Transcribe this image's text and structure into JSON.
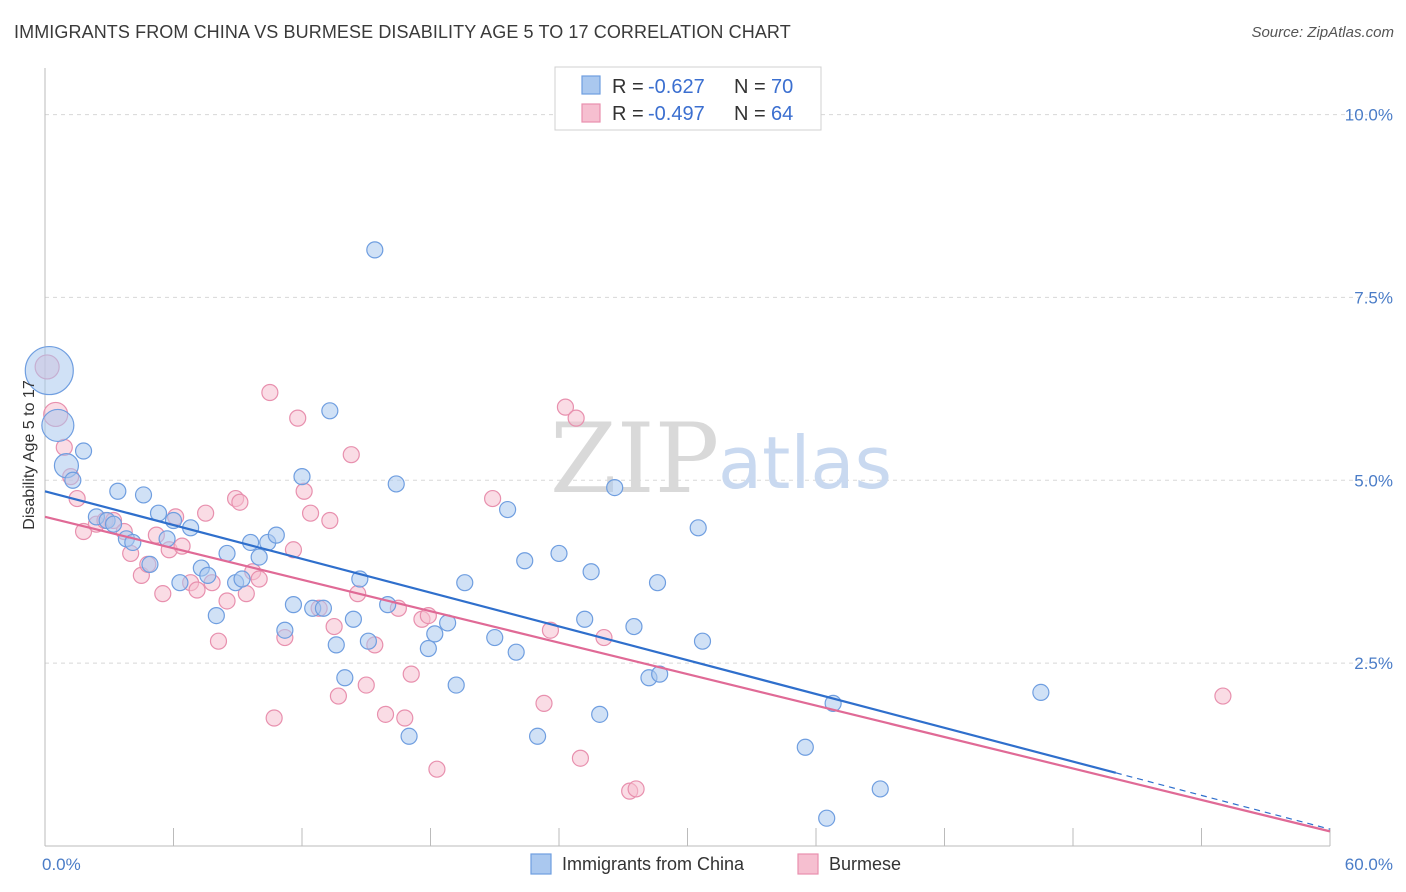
{
  "title": "IMMIGRANTS FROM CHINA VS BURMESE DISABILITY AGE 5 TO 17 CORRELATION CHART",
  "source": "Source: ZipAtlas.com",
  "watermark": {
    "zip": "ZIP",
    "atlas": "atlas"
  },
  "colors": {
    "china_fill": "#aac8ef",
    "china_stroke": "#6f9ee0",
    "china_line": "#2f6fcc",
    "burmese_fill": "#f6bfd0",
    "burmese_stroke": "#e890ae",
    "burmese_line": "#e06a96",
    "grid": "#d8d8d8",
    "tick_label": "#4a7cc7"
  },
  "legend": {
    "rows": [
      {
        "r_label": "R = ",
        "r_value": "-0.627",
        "n_label": "N = ",
        "n_value": "70"
      },
      {
        "r_label": "R = ",
        "r_value": "-0.497",
        "n_label": "N = ",
        "n_value": "64"
      }
    ]
  },
  "chart_data": {
    "type": "scatter",
    "title": "IMMIGRANTS FROM CHINA VS BURMESE DISABILITY AGE 5 TO 17 CORRELATION CHART",
    "xlabel": "",
    "ylabel": "Disability Age 5 to 17",
    "xlim": [
      0,
      60
    ],
    "ylim": [
      0,
      10.5
    ],
    "x_tick_labels": [
      {
        "value": 0,
        "label": "0.0%"
      },
      {
        "value": 60,
        "label": "60.0%"
      }
    ],
    "y_tick_labels": [
      {
        "value": 2.5,
        "label": "2.5%"
      },
      {
        "value": 5.0,
        "label": "5.0%"
      },
      {
        "value": 7.5,
        "label": "7.5%"
      },
      {
        "value": 10.0,
        "label": "10.0%"
      }
    ],
    "grid": true,
    "legend_position": "top-center",
    "series": [
      {
        "name": "Immigrants from China",
        "trend": {
          "x": [
            0,
            50
          ],
          "y": [
            4.85,
            1.0
          ],
          "dashed_extension_to_x": 60
        },
        "points": [
          {
            "x": 0.2,
            "y": 6.5,
            "s": 3
          },
          {
            "x": 0.6,
            "y": 5.75,
            "s": 2
          },
          {
            "x": 1.0,
            "y": 5.2,
            "s": 1.5
          },
          {
            "x": 1.3,
            "y": 5.0,
            "s": 1
          },
          {
            "x": 1.8,
            "y": 5.4,
            "s": 1
          },
          {
            "x": 2.4,
            "y": 4.5,
            "s": 1
          },
          {
            "x": 2.9,
            "y": 4.45,
            "s": 1
          },
          {
            "x": 3.2,
            "y": 4.4,
            "s": 1
          },
          {
            "x": 3.4,
            "y": 4.85,
            "s": 1
          },
          {
            "x": 3.8,
            "y": 4.2,
            "s": 1
          },
          {
            "x": 4.1,
            "y": 4.15,
            "s": 1
          },
          {
            "x": 4.6,
            "y": 4.8,
            "s": 1
          },
          {
            "x": 4.9,
            "y": 3.85,
            "s": 1
          },
          {
            "x": 5.3,
            "y": 4.55,
            "s": 1
          },
          {
            "x": 5.7,
            "y": 4.2,
            "s": 1
          },
          {
            "x": 6.0,
            "y": 4.45,
            "s": 1
          },
          {
            "x": 6.3,
            "y": 3.6,
            "s": 1
          },
          {
            "x": 6.8,
            "y": 4.35,
            "s": 1
          },
          {
            "x": 7.3,
            "y": 3.8,
            "s": 1
          },
          {
            "x": 7.6,
            "y": 3.7,
            "s": 1
          },
          {
            "x": 8.0,
            "y": 3.15,
            "s": 1
          },
          {
            "x": 8.5,
            "y": 4.0,
            "s": 1
          },
          {
            "x": 8.9,
            "y": 3.6,
            "s": 1
          },
          {
            "x": 9.2,
            "y": 3.65,
            "s": 1
          },
          {
            "x": 9.6,
            "y": 4.15,
            "s": 1
          },
          {
            "x": 10.0,
            "y": 3.95,
            "s": 1
          },
          {
            "x": 10.4,
            "y": 4.15,
            "s": 1
          },
          {
            "x": 10.8,
            "y": 4.25,
            "s": 1
          },
          {
            "x": 11.2,
            "y": 2.95,
            "s": 1
          },
          {
            "x": 11.6,
            "y": 3.3,
            "s": 1
          },
          {
            "x": 12.0,
            "y": 5.05,
            "s": 1
          },
          {
            "x": 12.5,
            "y": 3.25,
            "s": 1
          },
          {
            "x": 13.0,
            "y": 3.25,
            "s": 1
          },
          {
            "x": 13.3,
            "y": 5.95,
            "s": 1
          },
          {
            "x": 13.6,
            "y": 2.75,
            "s": 1
          },
          {
            "x": 14.0,
            "y": 2.3,
            "s": 1
          },
          {
            "x": 14.4,
            "y": 3.1,
            "s": 1
          },
          {
            "x": 14.7,
            "y": 3.65,
            "s": 1
          },
          {
            "x": 15.1,
            "y": 2.8,
            "s": 1
          },
          {
            "x": 15.4,
            "y": 8.15,
            "s": 1
          },
          {
            "x": 16.0,
            "y": 3.3,
            "s": 1
          },
          {
            "x": 16.4,
            "y": 4.95,
            "s": 1
          },
          {
            "x": 17.0,
            "y": 1.5,
            "s": 1
          },
          {
            "x": 17.9,
            "y": 2.7,
            "s": 1
          },
          {
            "x": 18.2,
            "y": 2.9,
            "s": 1
          },
          {
            "x": 18.8,
            "y": 3.05,
            "s": 1
          },
          {
            "x": 19.2,
            "y": 2.2,
            "s": 1
          },
          {
            "x": 19.6,
            "y": 3.6,
            "s": 1
          },
          {
            "x": 21.0,
            "y": 2.85,
            "s": 1
          },
          {
            "x": 21.6,
            "y": 4.6,
            "s": 1
          },
          {
            "x": 22.0,
            "y": 2.65,
            "s": 1
          },
          {
            "x": 22.4,
            "y": 3.9,
            "s": 1
          },
          {
            "x": 23.0,
            "y": 1.5,
            "s": 1
          },
          {
            "x": 24.0,
            "y": 4.0,
            "s": 1
          },
          {
            "x": 25.2,
            "y": 3.1,
            "s": 1
          },
          {
            "x": 25.5,
            "y": 3.75,
            "s": 1
          },
          {
            "x": 25.9,
            "y": 1.8,
            "s": 1
          },
          {
            "x": 26.6,
            "y": 4.9,
            "s": 1
          },
          {
            "x": 27.5,
            "y": 3.0,
            "s": 1
          },
          {
            "x": 28.2,
            "y": 2.3,
            "s": 1
          },
          {
            "x": 28.6,
            "y": 3.6,
            "s": 1
          },
          {
            "x": 28.7,
            "y": 2.35,
            "s": 1
          },
          {
            "x": 30.5,
            "y": 4.35,
            "s": 1
          },
          {
            "x": 30.7,
            "y": 2.8,
            "s": 1
          },
          {
            "x": 35.5,
            "y": 1.35,
            "s": 1
          },
          {
            "x": 36.5,
            "y": 0.38,
            "s": 1
          },
          {
            "x": 36.8,
            "y": 1.95,
            "s": 1
          },
          {
            "x": 39.0,
            "y": 0.78,
            "s": 1
          },
          {
            "x": 46.5,
            "y": 2.1,
            "s": 1
          }
        ]
      },
      {
        "name": "Burmese",
        "trend": {
          "x": [
            0,
            60
          ],
          "y": [
            4.5,
            0.2
          ]
        },
        "points": [
          {
            "x": 0.1,
            "y": 6.55,
            "s": 1.5
          },
          {
            "x": 0.5,
            "y": 5.9,
            "s": 1.5
          },
          {
            "x": 0.9,
            "y": 5.45,
            "s": 1
          },
          {
            "x": 1.2,
            "y": 5.05,
            "s": 1
          },
          {
            "x": 1.5,
            "y": 4.75,
            "s": 1
          },
          {
            "x": 1.8,
            "y": 4.3,
            "s": 1
          },
          {
            "x": 2.4,
            "y": 4.4,
            "s": 1
          },
          {
            "x": 2.8,
            "y": 4.45,
            "s": 1
          },
          {
            "x": 3.2,
            "y": 4.45,
            "s": 1
          },
          {
            "x": 3.7,
            "y": 4.3,
            "s": 1
          },
          {
            "x": 4.0,
            "y": 4.0,
            "s": 1
          },
          {
            "x": 4.5,
            "y": 3.7,
            "s": 1
          },
          {
            "x": 4.8,
            "y": 3.85,
            "s": 1
          },
          {
            "x": 5.2,
            "y": 4.25,
            "s": 1
          },
          {
            "x": 5.5,
            "y": 3.45,
            "s": 1
          },
          {
            "x": 5.8,
            "y": 4.05,
            "s": 1
          },
          {
            "x": 6.1,
            "y": 4.5,
            "s": 1
          },
          {
            "x": 6.4,
            "y": 4.1,
            "s": 1
          },
          {
            "x": 6.8,
            "y": 3.6,
            "s": 1
          },
          {
            "x": 7.1,
            "y": 3.5,
            "s": 1
          },
          {
            "x": 7.5,
            "y": 4.55,
            "s": 1
          },
          {
            "x": 7.8,
            "y": 3.6,
            "s": 1
          },
          {
            "x": 8.1,
            "y": 2.8,
            "s": 1
          },
          {
            "x": 8.5,
            "y": 3.35,
            "s": 1
          },
          {
            "x": 8.9,
            "y": 4.75,
            "s": 1
          },
          {
            "x": 9.1,
            "y": 4.7,
            "s": 1
          },
          {
            "x": 9.4,
            "y": 3.45,
            "s": 1
          },
          {
            "x": 9.7,
            "y": 3.75,
            "s": 1
          },
          {
            "x": 10.0,
            "y": 3.65,
            "s": 1
          },
          {
            "x": 10.5,
            "y": 6.2,
            "s": 1
          },
          {
            "x": 10.7,
            "y": 1.75,
            "s": 1
          },
          {
            "x": 11.2,
            "y": 2.85,
            "s": 1
          },
          {
            "x": 11.6,
            "y": 4.05,
            "s": 1
          },
          {
            "x": 11.8,
            "y": 5.85,
            "s": 1
          },
          {
            "x": 12.1,
            "y": 4.85,
            "s": 1
          },
          {
            "x": 12.4,
            "y": 4.55,
            "s": 1
          },
          {
            "x": 12.8,
            "y": 3.25,
            "s": 1
          },
          {
            "x": 13.3,
            "y": 4.45,
            "s": 1
          },
          {
            "x": 13.5,
            "y": 3.0,
            "s": 1
          },
          {
            "x": 13.7,
            "y": 2.05,
            "s": 1
          },
          {
            "x": 14.3,
            "y": 5.35,
            "s": 1
          },
          {
            "x": 14.6,
            "y": 3.45,
            "s": 1
          },
          {
            "x": 15.0,
            "y": 2.2,
            "s": 1
          },
          {
            "x": 15.4,
            "y": 2.75,
            "s": 1
          },
          {
            "x": 15.9,
            "y": 1.8,
            "s": 1
          },
          {
            "x": 16.5,
            "y": 3.25,
            "s": 1
          },
          {
            "x": 16.8,
            "y": 1.75,
            "s": 1
          },
          {
            "x": 17.1,
            "y": 2.35,
            "s": 1
          },
          {
            "x": 17.6,
            "y": 3.1,
            "s": 1
          },
          {
            "x": 17.9,
            "y": 3.15,
            "s": 1
          },
          {
            "x": 18.3,
            "y": 1.05,
            "s": 1
          },
          {
            "x": 20.9,
            "y": 4.75,
            "s": 1
          },
          {
            "x": 23.3,
            "y": 1.95,
            "s": 1
          },
          {
            "x": 23.6,
            "y": 2.95,
            "s": 1
          },
          {
            "x": 24.3,
            "y": 6.0,
            "s": 1
          },
          {
            "x": 24.8,
            "y": 5.85,
            "s": 1
          },
          {
            "x": 25.0,
            "y": 1.2,
            "s": 1
          },
          {
            "x": 26.1,
            "y": 2.85,
            "s": 1
          },
          {
            "x": 27.3,
            "y": 0.75,
            "s": 1
          },
          {
            "x": 27.6,
            "y": 0.78,
            "s": 1
          },
          {
            "x": 55.0,
            "y": 2.05,
            "s": 1
          }
        ]
      }
    ]
  }
}
